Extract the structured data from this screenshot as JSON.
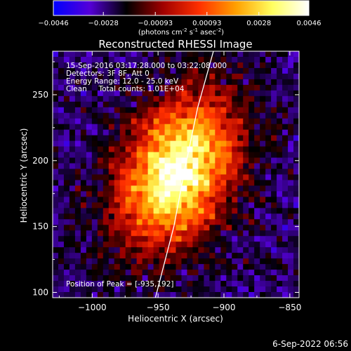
{
  "chart_data": {
    "type": "heatmap",
    "title": "Reconstructed RHESSI Image",
    "colorbar": {
      "ticks": [
        "-0.0046",
        "-0.0028",
        "-0.00093",
        "0.00093",
        "0.0028",
        "0.0046"
      ],
      "min": -0.0046,
      "max": 0.0046,
      "colormap": [
        "#0000ff",
        "#5500d8",
        "#000000",
        "#a00000",
        "#ff3000",
        "#ffa000",
        "#ffff60",
        "#ffffff"
      ]
    },
    "units_label_parts": [
      "(photons cm",
      "-2",
      " s",
      "-1",
      " asec",
      "-2",
      ")"
    ],
    "xlabel": "Heliocentric X (arcsec)",
    "ylabel": "Heliocentric Y (arcsec)",
    "xlim": [
      -1030,
      -843
    ],
    "ylim": [
      96,
      283
    ],
    "xticks": [
      -1000,
      -950,
      -900,
      -850
    ],
    "yticks": [
      100,
      150,
      200,
      250
    ],
    "xtick_labels": [
      "−1000",
      "−950",
      "−900",
      "−850"
    ],
    "ytick_labels": [
      "100",
      "150",
      "200",
      "250"
    ],
    "annotations": [
      "15-Sep-2016 03:17:28.000 to 03:22:08.000",
      "Detectors: 3F 8F, Att 0",
      "Energy Range: 12.0 - 25.0 keV",
      "Clean     Total counts: 1.01E+04"
    ],
    "peak_label": "Position of Peak = [-935,192]",
    "peak": [
      -935,
      192
    ],
    "source": {
      "center": [
        -935,
        192
      ],
      "major_axis_deg": 63,
      "sigma_major": 40,
      "sigma_minor": 26,
      "ring_period": 17
    },
    "limb_line": [
      [
        -952,
        96
      ],
      [
        -938,
        150
      ],
      [
        -930,
        192
      ],
      [
        -920,
        240
      ],
      [
        -908,
        283
      ]
    ]
  },
  "footer": {
    "date": "6-Sep-2022 06:56"
  }
}
